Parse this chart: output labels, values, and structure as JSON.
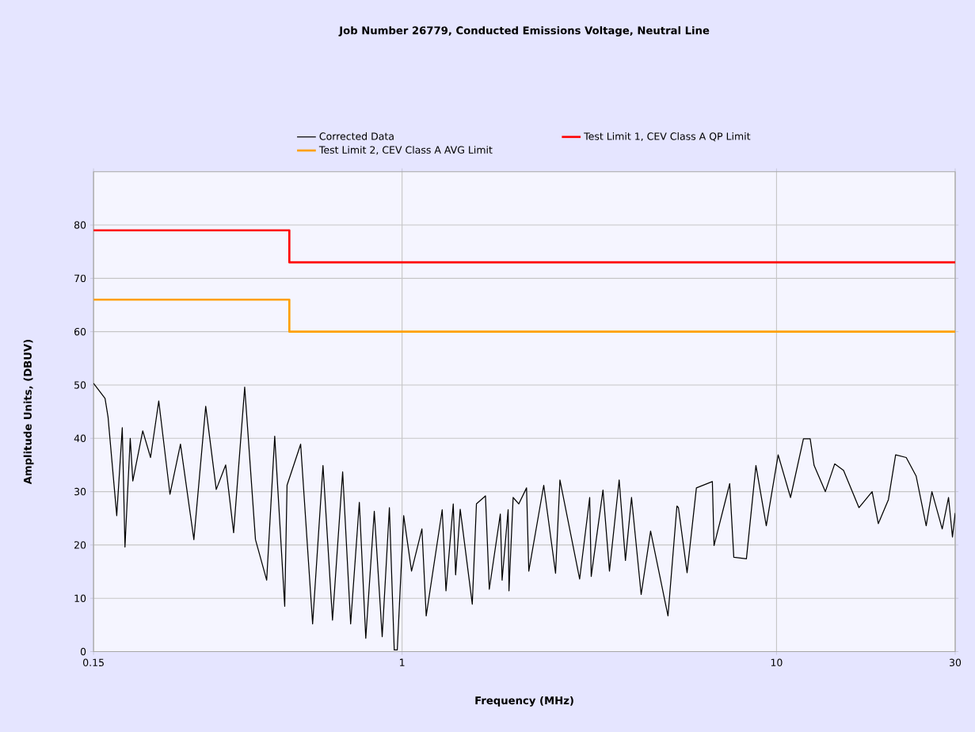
{
  "chart_data": {
    "type": "line",
    "title": "Job Number 26779, Conducted Emissions Voltage, Neutral Line",
    "xlabel": "Frequency (MHz)",
    "ylabel": "Amplitude Units, (DBUV)",
    "xlim": [
      0.15,
      30
    ],
    "ylim": [
      0,
      90
    ],
    "xticks": [
      0.15,
      1,
      10,
      30
    ],
    "yticks": [
      0,
      10,
      20,
      30,
      40,
      50,
      60,
      70,
      80
    ],
    "log": "x",
    "grid": true,
    "legend": "top",
    "series": [
      {
        "name": "Corrected Data",
        "color": "#000000",
        "x": [
          0.15,
          0.161,
          0.164,
          0.173,
          0.179,
          0.182,
          0.188,
          0.191,
          0.203,
          0.213,
          0.224,
          0.24,
          0.256,
          0.278,
          0.299,
          0.319,
          0.338,
          0.355,
          0.38,
          0.406,
          0.435,
          0.457,
          0.486,
          0.493,
          0.536,
          0.577,
          0.615,
          0.652,
          0.694,
          0.729,
          0.769,
          0.8,
          0.843,
          0.885,
          0.925,
          0.953,
          0.971,
          1.01,
          1.06,
          1.13,
          1.16,
          1.28,
          1.31,
          1.37,
          1.39,
          1.43,
          1.54,
          1.58,
          1.67,
          1.71,
          1.83,
          1.85,
          1.92,
          1.93,
          1.98,
          2.05,
          2.15,
          2.18,
          2.39,
          2.57,
          2.64,
          2.98,
          3.17,
          3.2,
          3.44,
          3.58,
          3.8,
          3.95,
          4.1,
          4.35,
          4.61,
          5.13,
          5.42,
          5.47,
          5.77,
          6.11,
          6.74,
          6.81,
          7.5,
          7.69,
          8.31,
          8.81,
          9.39,
          10.1,
          10.9,
          11.8,
          12.3,
          12.6,
          13.5,
          14.3,
          15.1,
          16.6,
          18.0,
          18.7,
          19.9,
          20.8,
          22.2,
          23.6,
          25.1,
          26.0,
          27.7,
          28.8,
          29.5,
          30
        ],
        "values": [
          50.3,
          47.5,
          44,
          25.5,
          42,
          19.6,
          40,
          32,
          41.4,
          36.4,
          47,
          29.5,
          38.9,
          21,
          46,
          30.4,
          35,
          22.3,
          49.6,
          21,
          13.4,
          40.4,
          8.5,
          31.2,
          38.9,
          5.2,
          34.9,
          5.9,
          33.7,
          5.2,
          28,
          2.5,
          26.3,
          2.8,
          27,
          0.3,
          0.3,
          25.5,
          15.1,
          23,
          6.7,
          26.6,
          11.4,
          27.7,
          14.4,
          26.7,
          8.9,
          27.7,
          29.2,
          11.7,
          25.8,
          13.4,
          26.6,
          11.4,
          28.9,
          27.7,
          30.7,
          15.1,
          31.2,
          14.7,
          32.2,
          13.6,
          28.9,
          14.1,
          30.3,
          15.1,
          32.2,
          17.1,
          28.9,
          10.7,
          22.6,
          6.7,
          27.3,
          27,
          14.8,
          30.7,
          31.9,
          19.9,
          31.5,
          17.7,
          17.4,
          34.9,
          23.6,
          36.9,
          28.9,
          39.9,
          39.9,
          34.9,
          30,
          35.2,
          34,
          27,
          30,
          24,
          28.5,
          36.9,
          36.4,
          32.9,
          23.6,
          30,
          23,
          28.9,
          21.5,
          26
        ]
      },
      {
        "name": "Test Limit 1, CEV Class A QP Limit",
        "color": "#ff0000",
        "x": [
          0.15,
          0.5,
          0.5,
          30
        ],
        "values": [
          79,
          79,
          73,
          73
        ]
      },
      {
        "name": "Test Limit 2, CEV Class A AVG Limit",
        "color": "#ffa000",
        "x": [
          0.15,
          0.5,
          0.5,
          30
        ],
        "values": [
          66,
          66,
          60,
          60
        ]
      }
    ]
  }
}
